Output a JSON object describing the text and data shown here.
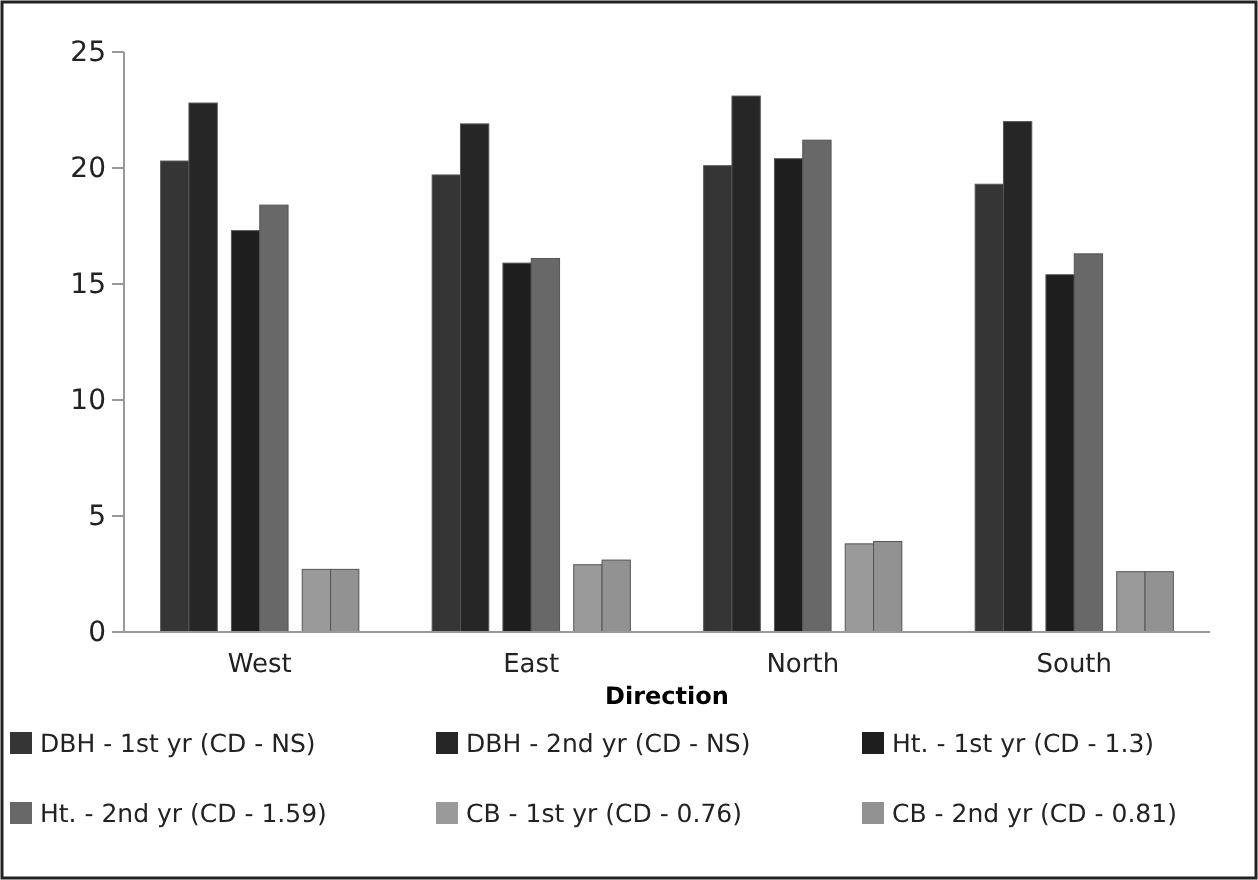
{
  "chart_data": {
    "type": "bar",
    "xlabel": "Direction",
    "categories": [
      "West",
      "East",
      "North",
      "South"
    ],
    "series": [
      {
        "name": "DBH - 1st yr (CD - NS)",
        "color": "#353535",
        "values": [
          20.3,
          19.7,
          20.1,
          19.3
        ]
      },
      {
        "name": "DBH - 2nd yr (CD - NS)",
        "color": "#262626",
        "values": [
          22.8,
          21.9,
          23.1,
          22.0
        ]
      },
      {
        "name": "Ht. - 1st yr (CD - 1.3)",
        "color": "#1e1e1e",
        "values": [
          17.3,
          15.9,
          20.4,
          15.4
        ]
      },
      {
        "name": "Ht. - 2nd yr (CD - 1.59)",
        "color": "#686868",
        "values": [
          18.4,
          16.1,
          21.2,
          16.3
        ]
      },
      {
        "name": "CB - 1st yr (CD - 0.76)",
        "color": "#9a9a9a",
        "values": [
          2.7,
          2.9,
          3.8,
          2.6
        ]
      },
      {
        "name": "CB - 2nd yr (CD - 0.81)",
        "color": "#929292",
        "values": [
          2.7,
          3.1,
          3.9,
          2.6
        ]
      }
    ],
    "ylim": [
      0,
      25
    ],
    "yticks": [
      0,
      5,
      10,
      15,
      20,
      25
    ],
    "grid": false,
    "legend": "bottom"
  }
}
